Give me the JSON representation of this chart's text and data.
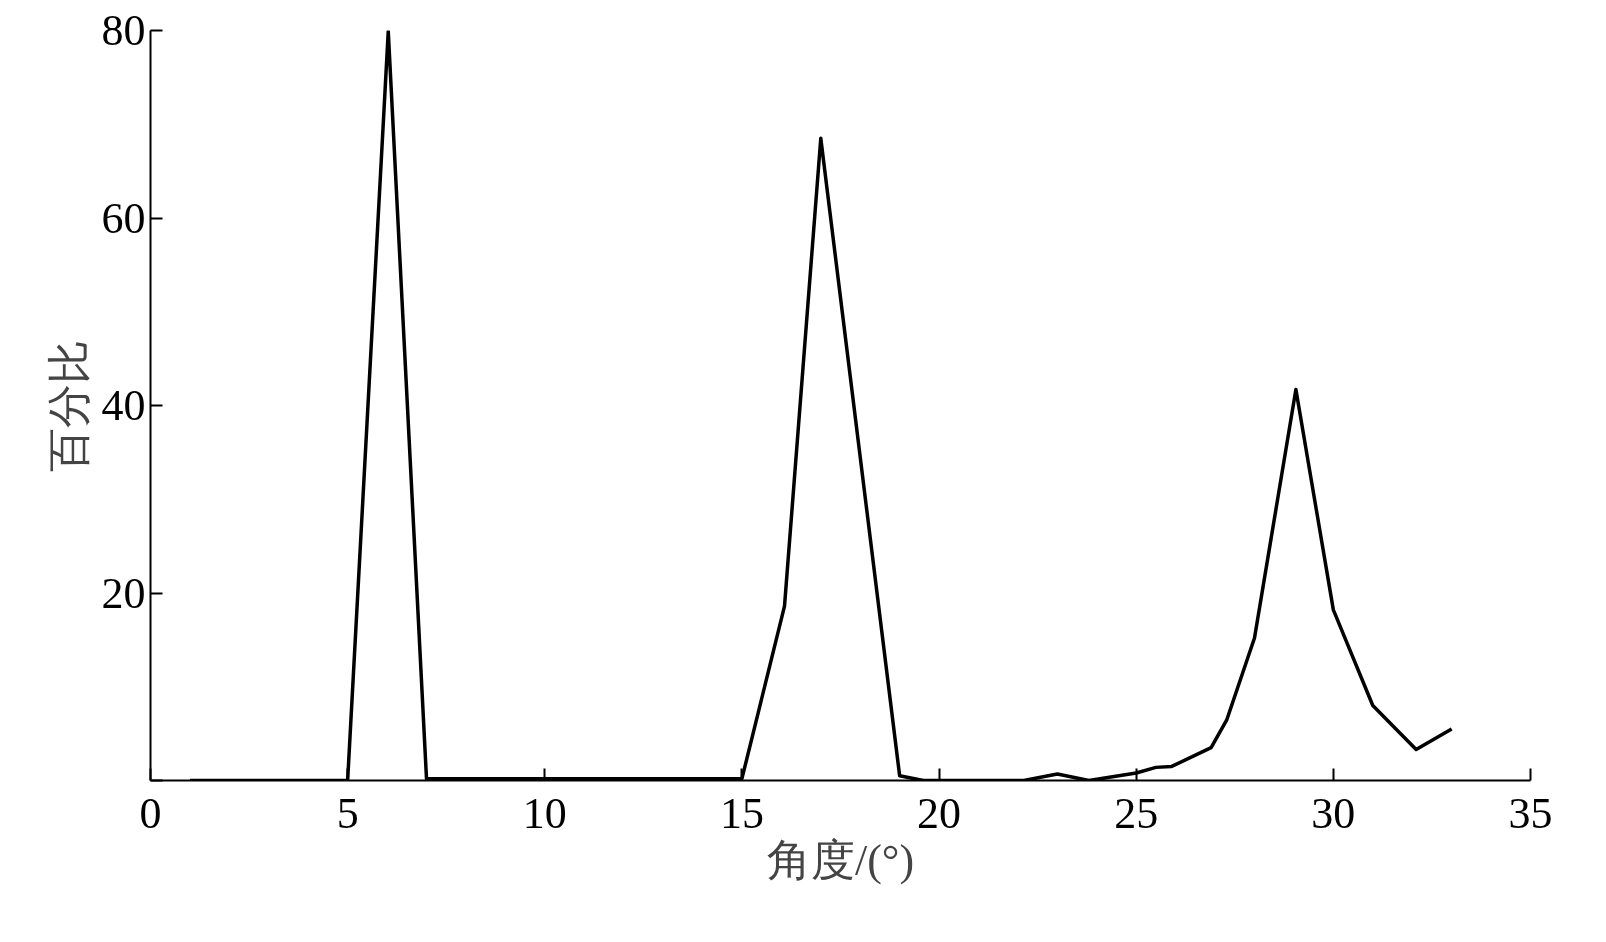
{
  "chart_data": {
    "type": "line",
    "xlabel": "角度/(°)",
    "ylabel": "百分比",
    "x": [
      1.0,
      5.0,
      6.03,
      7.0,
      15.0,
      16.08,
      17.0,
      19.0,
      19.6,
      20.0,
      22.15,
      23.0,
      23.8,
      25.0,
      25.5,
      25.9,
      26.9,
      27.3,
      28.0,
      29.05,
      30.0,
      31.0,
      32.1,
      33.0
    ],
    "series": [
      {
        "color": "#000000",
        "values": [
          0,
          0,
          79.9,
          0.2,
          0.2,
          18.6,
          68.5,
          0.5,
          0,
          0,
          0,
          0.7,
          0,
          0.8,
          1.4,
          1.5,
          3.5,
          6.5,
          15.2,
          41.7,
          18.2,
          8.0,
          3.3,
          5.5
        ]
      }
    ],
    "xlim": [
      0,
      35
    ],
    "xticks": [
      0,
      5,
      10,
      15,
      20,
      25,
      30,
      35
    ],
    "ylim": [
      0,
      80
    ],
    "yticks": [
      {
        "value": 0,
        "label": null
      },
      20,
      40,
      60,
      80
    ],
    "grid": false,
    "marker": "none",
    "line_style": "solid"
  }
}
